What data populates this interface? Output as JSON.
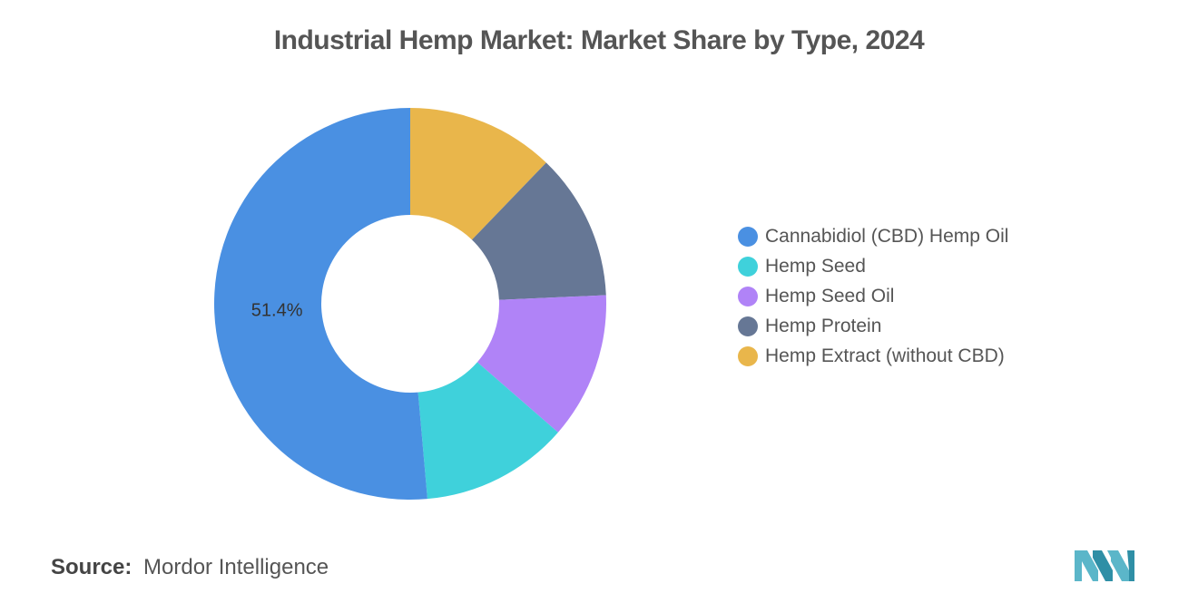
{
  "chart_data": {
    "type": "pie",
    "subtype": "donut",
    "title": "Industrial Hemp Market: Market Share by Type, 2024",
    "series": [
      {
        "name": "Cannabidiol (CBD) Hemp Oil",
        "value": 51.4,
        "color": "#4a90e2",
        "label": "51.4%"
      },
      {
        "name": "Hemp Seed",
        "value": 12.2,
        "color": "#3fd1db",
        "label": ""
      },
      {
        "name": "Hemp Seed Oil",
        "value": 12.1,
        "color": "#b083f7",
        "label": ""
      },
      {
        "name": "Hemp Protein",
        "value": 12.1,
        "color": "#667795",
        "label": ""
      },
      {
        "name": "Hemp Extract (without CBD)",
        "value": 12.2,
        "color": "#e9b64b",
        "label": ""
      }
    ],
    "legend_position": "right"
  },
  "footer": {
    "source_label": "Source:",
    "source_value": "Mordor Intelligence"
  },
  "logo": {
    "icon": "mordor-intelligence-logo",
    "color": "#5bb6c9"
  }
}
